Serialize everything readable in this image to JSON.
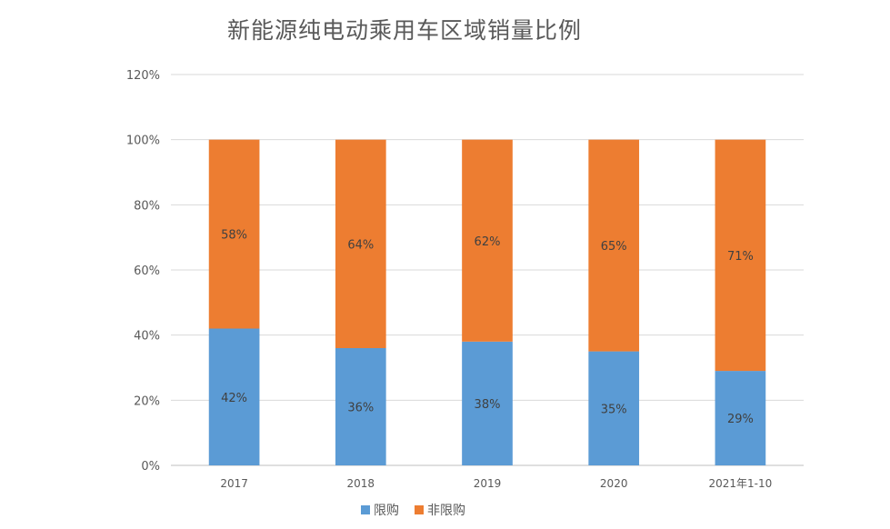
{
  "chart_data": {
    "type": "bar",
    "stacked": true,
    "title": "新能源纯电动乘用车区域销量比例",
    "xlabel": "",
    "ylabel": "",
    "categories": [
      "2017",
      "2018",
      "2019",
      "2020",
      "2021年1-10"
    ],
    "series": [
      {
        "name": "限购",
        "values": [
          42,
          36,
          38,
          35,
          29
        ],
        "color": "#5b9bd5",
        "labels": [
          "42%",
          "36%",
          "38%",
          "35%",
          "29%"
        ]
      },
      {
        "name": "非限购",
        "values": [
          58,
          64,
          62,
          65,
          71
        ],
        "color": "#ed7d31",
        "labels": [
          "58%",
          "64%",
          "62%",
          "65%",
          "71%"
        ]
      }
    ],
    "ylim": [
      0,
      120
    ],
    "yticks": [
      "0%",
      "20%",
      "40%",
      "60%",
      "80%",
      "100%",
      "120%"
    ],
    "grid": true,
    "legend": "bottom"
  }
}
